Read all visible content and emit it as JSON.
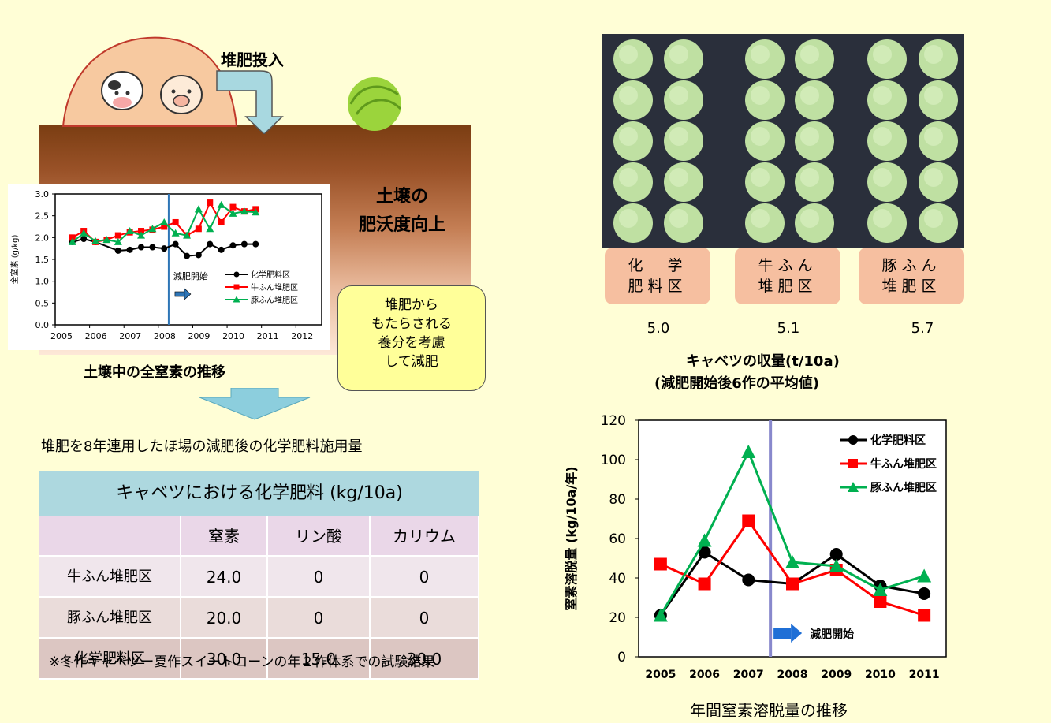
{
  "illustration": {
    "compost_input_label": "堆肥投入",
    "soil_fertility_label_line1": "土壌の",
    "soil_fertility_label_line2": "肥沃度向上",
    "note_lines": [
      "堆肥から",
      "もたらされる",
      "養分を考慮",
      "して減肥"
    ],
    "colors": {
      "arrow": "#a8d8e0",
      "cabbage": "#9bd43c",
      "mound": "#f7c9a0"
    }
  },
  "soil_chart_caption": "土壌中の全窒素の推移",
  "flow_arrow_caption": "堆肥を8年連用したほ場の減肥後の化学肥料施用量",
  "fertilizer_table": {
    "title": "キャベツにおける化学肥料 (kg/10a)",
    "columns": [
      "",
      "窒素",
      "リン酸",
      "カリウム"
    ],
    "rows": [
      {
        "name": "牛ふん堆肥区",
        "n": "24.0",
        "p": "0",
        "k": "0"
      },
      {
        "name": "豚ふん堆肥区",
        "n": "20.0",
        "p": "0",
        "k": "0"
      },
      {
        "name": "化学肥料区",
        "n": "30.0",
        "p": "15.0",
        "k": "30.0"
      }
    ],
    "footnote": "※冬作キャベツー夏作スイートコーンの年２作体系での試験結果"
  },
  "plots": [
    {
      "label_line1": "化　学",
      "label_line2": "肥料区",
      "yield": "5.0"
    },
    {
      "label_line1": "牛ふん",
      "label_line2": "堆肥区",
      "yield": "5.1"
    },
    {
      "label_line1": "豚ふん",
      "label_line2": "堆肥区",
      "yield": "5.7"
    }
  ],
  "yield_caption_line1": "キャベツの収量(t/10a)",
  "yield_caption_line2": "(減肥開始後6作の平均値)",
  "leaching_caption": "年間窒素溶脱量の推移",
  "chart_data": [
    {
      "type": "line",
      "title": "",
      "ylabel": "全窒素 (g/kg)",
      "xlabel": "",
      "ylim": [
        0,
        3.0
      ],
      "yticks": [
        "0.0",
        "0.5",
        "1.0",
        "1.5",
        "2.0",
        "2.5",
        "3.0"
      ],
      "xlim": [
        2005,
        2012.75
      ],
      "xticks": [
        "2005",
        "2006",
        "2007",
        "2008",
        "2009",
        "2010",
        "2011",
        "2012"
      ],
      "x": [
        2005.5,
        2005.83,
        2006.17,
        2006.5,
        2006.83,
        2007.17,
        2007.5,
        2007.83,
        2008.17,
        2008.5,
        2008.83,
        2009.17,
        2009.5,
        2009.83,
        2010.17,
        2010.5,
        2010.83,
        2011.17,
        2011.5,
        2011.83,
        2012.17,
        2012.5
      ],
      "annotation": "減肥開始",
      "start_line_x": 2008.3,
      "legend_position": "right",
      "series": [
        {
          "name": "化学肥料区",
          "color": "#000000",
          "marker": "circle",
          "values": [
            1.9,
            1.97,
            1.9,
            null,
            1.7,
            1.72,
            1.78,
            1.78,
            1.75,
            1.85,
            1.58,
            1.6,
            1.85,
            1.72,
            1.82,
            1.85,
            1.85,
            null,
            null,
            null,
            null,
            null
          ]
        },
        {
          "name": "牛ふん堆肥区",
          "color": "#ff0000",
          "marker": "square",
          "values": [
            2.0,
            2.15,
            1.9,
            1.95,
            2.05,
            2.12,
            2.15,
            2.18,
            2.25,
            2.35,
            2.05,
            2.2,
            2.8,
            2.35,
            2.7,
            2.6,
            2.65,
            null,
            null,
            null,
            null,
            null
          ]
        },
        {
          "name": "豚ふん堆肥区",
          "color": "#00b050",
          "marker": "triangle",
          "values": [
            1.9,
            2.1,
            1.92,
            1.95,
            1.9,
            2.15,
            2.05,
            2.2,
            2.35,
            2.1,
            2.05,
            2.65,
            2.2,
            2.75,
            2.55,
            2.6,
            2.58,
            null,
            null,
            null,
            null,
            null
          ]
        }
      ]
    },
    {
      "type": "line",
      "title": "",
      "ylabel": "窒素溶脱量 (kg/10a/年)",
      "xlabel": "",
      "ylim": [
        0,
        120
      ],
      "yticks": [
        "0",
        "20",
        "40",
        "60",
        "80",
        "100",
        "120"
      ],
      "categories": [
        "2005",
        "2006",
        "2007",
        "2008",
        "2009",
        "2010",
        "2011"
      ],
      "annotation": "減肥開始",
      "start_line_between": [
        "2007",
        "2008"
      ],
      "legend_position": "top-right",
      "series": [
        {
          "name": "化学肥料区",
          "color": "#000000",
          "marker": "circle",
          "values": [
            21,
            53,
            39,
            37,
            52,
            36,
            32
          ]
        },
        {
          "name": "牛ふん堆肥区",
          "color": "#ff0000",
          "marker": "square",
          "values": [
            47,
            37,
            69,
            37,
            44,
            28,
            21
          ]
        },
        {
          "name": "豚ふん堆肥区",
          "color": "#00b050",
          "marker": "triangle",
          "values": [
            21,
            59,
            104,
            48,
            46,
            34,
            41
          ]
        }
      ]
    }
  ]
}
